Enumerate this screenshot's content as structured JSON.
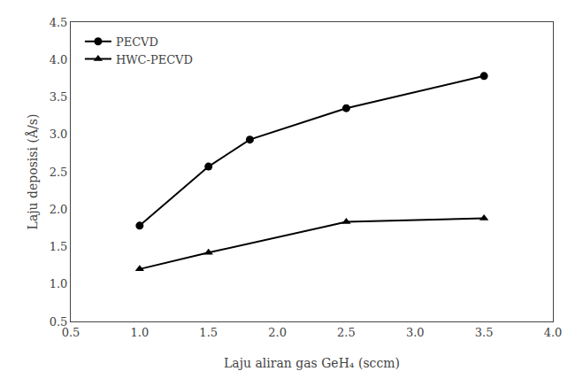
{
  "chart_data": {
    "type": "line",
    "xlabel": "Laju aliran gas GeH₄ (sccm)",
    "ylabel": "Laju deposisi (Å/s)",
    "series": [
      {
        "name": "PECVD",
        "color": "#000000",
        "marker": "circle",
        "line_style": "solid",
        "x": [
          1.0,
          1.5,
          1.8,
          2.5,
          3.5
        ],
        "values": [
          1.78,
          2.57,
          2.93,
          3.35,
          3.78
        ]
      },
      {
        "name": "HWC-PECVD",
        "color": "#000000",
        "marker": "triangle",
        "line_style": "solid",
        "x": [
          1.0,
          1.5,
          2.5,
          3.5
        ],
        "values": [
          1.2,
          1.42,
          1.83,
          1.88
        ]
      }
    ],
    "xlim": [
      0.5,
      4.0
    ],
    "ylim": [
      0.5,
      4.5
    ],
    "xticks": [
      0.5,
      {
        "value": 1.0,
        "label": "1.0"
      },
      1.5,
      {
        "value": 2.0,
        "label": "2.0"
      },
      2.5,
      {
        "value": 3.0,
        "label": "3.0"
      },
      3.5,
      {
        "value": 4.0,
        "label": "4.0"
      }
    ],
    "yticks": [
      0.5,
      {
        "value": 1.0,
        "label": "1.0"
      },
      1.5,
      {
        "value": 2.0,
        "label": "2.0"
      },
      2.5,
      {
        "value": 3.0,
        "label": "3.0"
      },
      3.5,
      {
        "value": 4.0,
        "label": "4.0"
      },
      4.5
    ],
    "grid": false,
    "legend": "upper left"
  }
}
